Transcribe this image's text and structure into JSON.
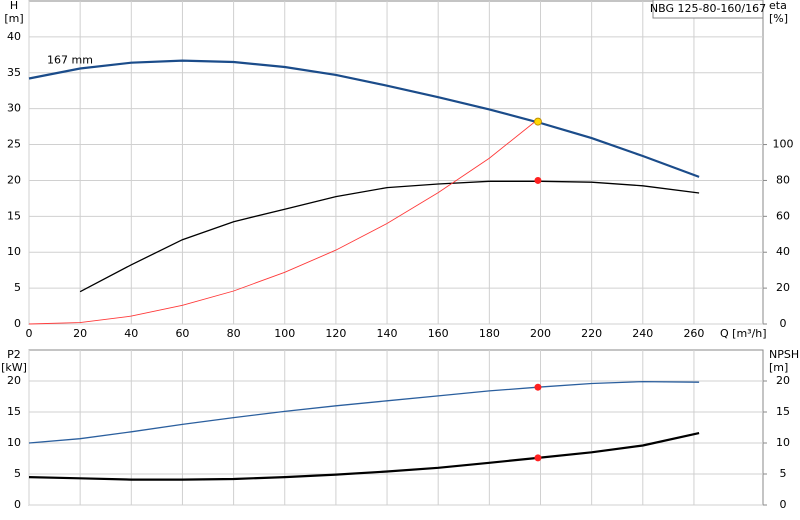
{
  "chart_data": [
    {
      "type": "line",
      "title": "NBG 125-80-160/167",
      "ylabel": "H",
      "yunit": "[m]",
      "y2label": "eta",
      "y2unit": "[%]",
      "xlabel": "Q [m³/h]",
      "xlim": [
        0,
        287
      ],
      "xticks": [
        0,
        20,
        40,
        60,
        80,
        100,
        120,
        140,
        160,
        180,
        200,
        220,
        240,
        260
      ],
      "ylim": [
        0,
        45
      ],
      "yticks": [
        0,
        5,
        10,
        15,
        20,
        25,
        30,
        35,
        40
      ],
      "y2lim": [
        0,
        180
      ],
      "y2ticks": [
        0,
        20,
        40,
        60,
        80,
        100
      ],
      "grid": true,
      "show_xtick_labels": true,
      "series": [
        {
          "name": "167 mm",
          "color": "#1b4c8a",
          "line_width": 2.2,
          "x": [
            0,
            20,
            40,
            60,
            80,
            100,
            120,
            140,
            160,
            180,
            200,
            220,
            240,
            262
          ],
          "values": [
            34.2,
            35.6,
            36.4,
            36.7,
            36.5,
            35.8,
            34.7,
            33.2,
            31.6,
            29.9,
            28.0,
            25.9,
            23.4,
            20.5
          ]
        },
        {
          "color": "#000000",
          "line_width": 1.3,
          "axis": "y2",
          "x": [
            20,
            40,
            60,
            80,
            100,
            120,
            140,
            160,
            180,
            200,
            220,
            240,
            262
          ],
          "values": [
            18,
            33,
            47,
            57,
            64,
            71,
            76,
            78,
            79.5,
            79.5,
            79,
            77,
            73
          ]
        },
        {
          "color": "#ff3a3a",
          "line_width": 0.9,
          "x": [
            0,
            20,
            40,
            60,
            80,
            100,
            120,
            140,
            160,
            180,
            199
          ],
          "values": [
            0,
            0.2,
            1.1,
            2.6,
            4.6,
            7.2,
            10.3,
            14.0,
            18.3,
            23.1,
            28.5
          ]
        }
      ],
      "points": [
        {
          "x": 199,
          "y": 28.2,
          "color": "#ffd700"
        },
        {
          "x": 199,
          "y": 80,
          "color": "#ff2020",
          "axis": "y2"
        }
      ]
    },
    {
      "type": "line",
      "ylabel": "P2",
      "yunit": "[kW]",
      "y2label": "NPSH",
      "y2unit": "[m]",
      "xlim": [
        0,
        287
      ],
      "xticks": [
        0,
        20,
        40,
        60,
        80,
        100,
        120,
        140,
        160,
        180,
        200,
        220,
        240,
        260
      ],
      "ylim": [
        0,
        25
      ],
      "yticks": [
        0,
        5,
        10,
        15,
        20
      ],
      "y2lim": [
        0,
        25
      ],
      "y2ticks": [
        0,
        5,
        10,
        15,
        20
      ],
      "grid": true,
      "show_xtick_labels": false,
      "series": [
        {
          "color": "#2b5f9e",
          "line_width": 1.3,
          "x": [
            0,
            20,
            40,
            60,
            80,
            100,
            120,
            140,
            160,
            180,
            199,
            220,
            240,
            262
          ],
          "values": [
            10.0,
            10.7,
            11.8,
            13.0,
            14.1,
            15.1,
            16.0,
            16.8,
            17.6,
            18.4,
            19.0,
            19.6,
            19.9,
            19.8
          ]
        },
        {
          "color": "#000000",
          "line_width": 2.2,
          "axis": "y2",
          "x": [
            0,
            20,
            40,
            60,
            80,
            100,
            120,
            140,
            160,
            180,
            199,
            220,
            240,
            262
          ],
          "values": [
            4.5,
            4.3,
            4.1,
            4.1,
            4.2,
            4.5,
            4.9,
            5.4,
            6.0,
            6.8,
            7.6,
            8.5,
            9.6,
            11.6
          ]
        }
      ],
      "points": [
        {
          "x": 199,
          "y": 19.0,
          "color": "#ff2020"
        },
        {
          "x": 199,
          "y": 7.6,
          "color": "#ff2020",
          "axis": "y2"
        }
      ]
    }
  ]
}
